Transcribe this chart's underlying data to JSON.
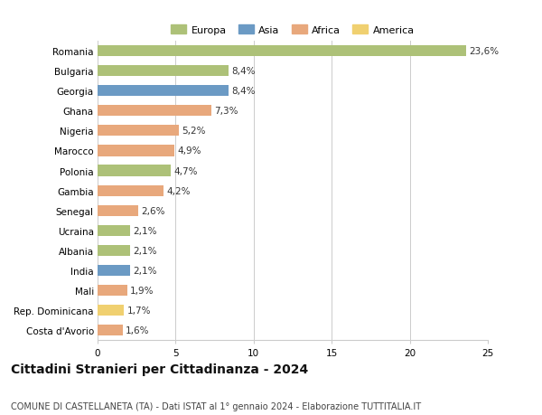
{
  "countries": [
    "Romania",
    "Bulgaria",
    "Georgia",
    "Ghana",
    "Nigeria",
    "Marocco",
    "Polonia",
    "Gambia",
    "Senegal",
    "Ucraina",
    "Albania",
    "India",
    "Mali",
    "Rep. Dominicana",
    "Costa d'Avorio"
  ],
  "values": [
    23.6,
    8.4,
    8.4,
    7.3,
    5.2,
    4.9,
    4.7,
    4.2,
    2.6,
    2.1,
    2.1,
    2.1,
    1.9,
    1.7,
    1.6
  ],
  "labels": [
    "23,6%",
    "8,4%",
    "8,4%",
    "7,3%",
    "5,2%",
    "4,9%",
    "4,7%",
    "4,2%",
    "2,6%",
    "2,1%",
    "2,1%",
    "2,1%",
    "1,9%",
    "1,7%",
    "1,6%"
  ],
  "colors": [
    "#adc178",
    "#adc178",
    "#6b9ac4",
    "#e8a87c",
    "#e8a87c",
    "#e8a87c",
    "#adc178",
    "#e8a87c",
    "#e8a87c",
    "#adc178",
    "#adc178",
    "#6b9ac4",
    "#e8a87c",
    "#f0d070",
    "#e8a87c"
  ],
  "legend": [
    {
      "label": "Europa",
      "color": "#adc178"
    },
    {
      "label": "Asia",
      "color": "#6b9ac4"
    },
    {
      "label": "Africa",
      "color": "#e8a87c"
    },
    {
      "label": "America",
      "color": "#f0d070"
    }
  ],
  "title": "Cittadini Stranieri per Cittadinanza - 2024",
  "subtitle": "COMUNE DI CASTELLANETA (TA) - Dati ISTAT al 1° gennaio 2024 - Elaborazione TUTTITALIA.IT",
  "xlim": [
    0,
    25
  ],
  "xticks": [
    0,
    5,
    10,
    15,
    20,
    25
  ],
  "background_color": "#ffffff",
  "bar_height": 0.55,
  "grid_color": "#cccccc",
  "label_fontsize": 7.5,
  "tick_fontsize": 7.5,
  "title_fontsize": 10,
  "subtitle_fontsize": 7
}
